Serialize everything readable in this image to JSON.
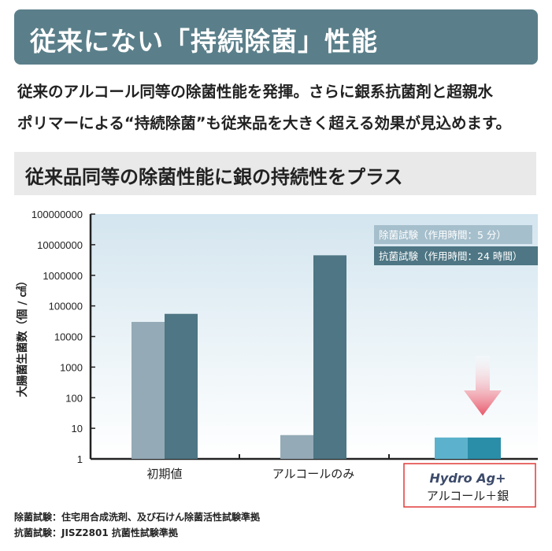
{
  "banner": {
    "title": "従来にない「持続除菌」性能"
  },
  "intro": {
    "line1": "従来のアルコール同等の除菌性能を発揮。さらに銀系抗菌剤と超親水",
    "line2": "ポリマーによる“持続除菌”も従来品を大きく超える効果が見込めます。"
  },
  "subheading": "従来品同等の除菌性能に銀の持続性をプラス",
  "chart_data": {
    "type": "bar",
    "yscale": "log",
    "ylim": [
      1,
      100000000
    ],
    "ylabel": "大腸菌生菌数（個 / ㎠）",
    "yticks": [
      "1",
      "10",
      "100",
      "1000",
      "10000",
      "100000",
      "1000000",
      "10000000",
      "100000000"
    ],
    "categories": [
      "初期値",
      "アルコールのみ",
      "アルコール＋銀"
    ],
    "highlight_logo": "Hydro Ag+",
    "series": [
      {
        "name": "除菌試験（作用時間：5 分）",
        "values": [
          30000,
          6,
          5
        ]
      },
      {
        "name": "抗菌試験（作用時間：24 時間）",
        "values": [
          55000,
          4500000,
          5
        ]
      }
    ],
    "colors": {
      "series1": "#94aab6",
      "series2": "#4e7684",
      "series1_highlight": "#5cb2cc",
      "series2_highlight": "#2b8ea8",
      "highlight_box": "#e03a3a",
      "arrow": "#e8576a"
    },
    "grid": false,
    "legend_position": "top-right"
  },
  "notes": [
    "除菌試験：住宅用合成洗剤、及び石けん除菌活性試験準拠",
    "抗菌試験：JISZ2801 抗菌性試験準拠"
  ]
}
